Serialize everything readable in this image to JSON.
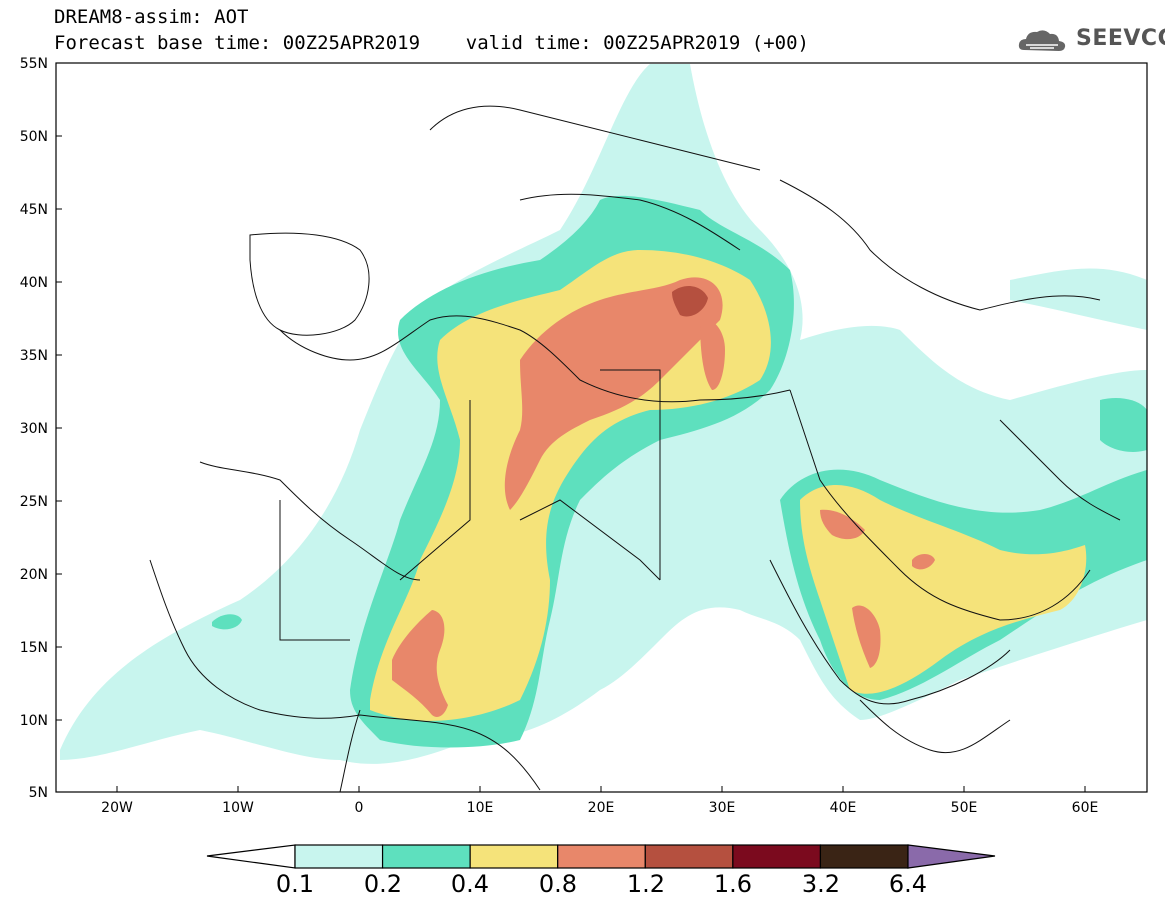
{
  "header": {
    "line1": "DREAM8-assim: AOT",
    "line2": "Forecast base time: 00Z25APR2019    valid time: 00Z25APR2019 (+00)"
  },
  "logo": {
    "text": "SEEVCCC",
    "icon": "cloud-icon"
  },
  "map": {
    "lat_labels": [
      "55N",
      "50N",
      "45N",
      "40N",
      "35N",
      "30N",
      "25N",
      "20N",
      "15N",
      "10N",
      "5N"
    ],
    "lon_labels": [
      "20W",
      "10W",
      "0",
      "10E",
      "20E",
      "30E",
      "40E",
      "50E",
      "60E"
    ]
  },
  "colorbar": {
    "levels": [
      "0.1",
      "0.2",
      "0.4",
      "0.8",
      "1.2",
      "1.6",
      "3.2",
      "6.4"
    ],
    "colors": [
      "#c8f5ee",
      "#5ee0be",
      "#f5e37a",
      "#e8876a",
      "#b5503f",
      "#7b0a1e",
      "#3a2415",
      "#8a6aaa"
    ]
  }
}
